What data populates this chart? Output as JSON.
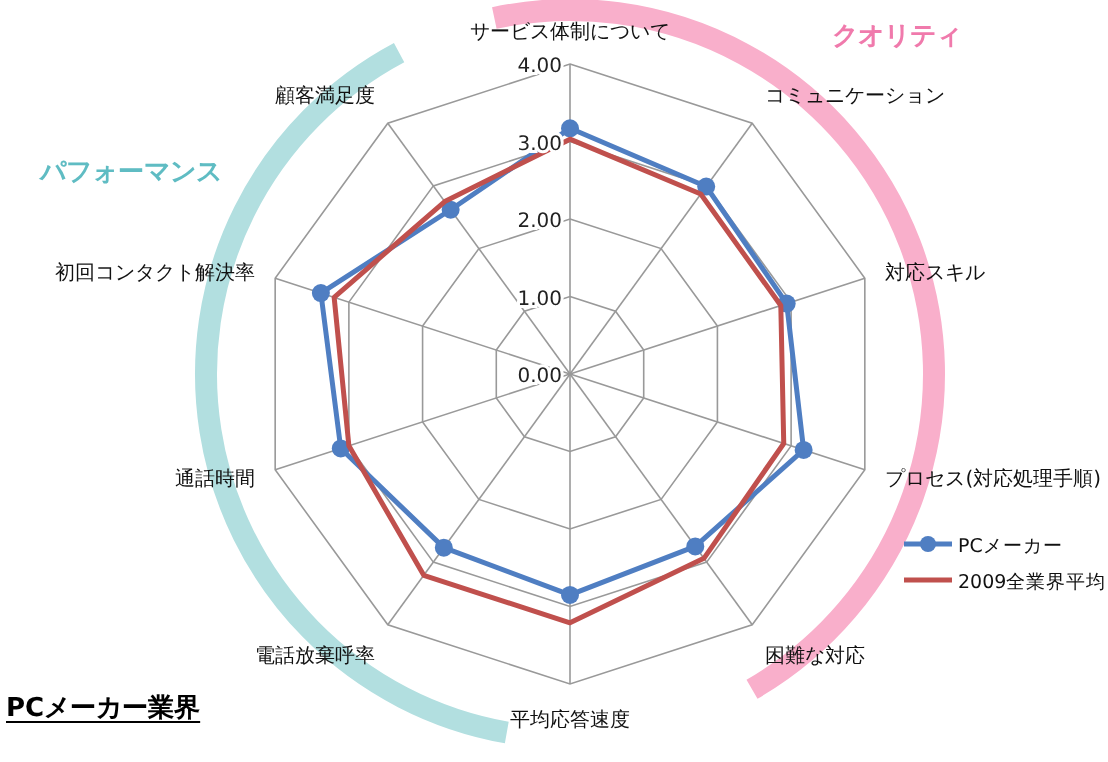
{
  "chart_data": {
    "type": "radar",
    "title": "PCメーカー業界",
    "categories": [
      "サービス体制について",
      "コミュニケーション",
      "対応スキル",
      "プロセス(対応処理手順)",
      "困難な対応",
      "平均応答速度",
      "電話放棄呼率",
      "通話時間",
      "初回コンタクト解決率",
      "顧客満足度"
    ],
    "series": [
      {
        "name": "PCメーカー",
        "color": "#4f7ec2",
        "marker": "circle",
        "values": [
          3.17,
          2.99,
          2.94,
          3.17,
          2.75,
          2.85,
          2.77,
          3.11,
          3.38,
          2.62
        ]
      },
      {
        "name": "2009全業界平均",
        "color": "#c0504d",
        "marker": "none",
        "values": [
          3.03,
          2.87,
          2.86,
          2.9,
          2.94,
          3.21,
          3.21,
          3.0,
          3.2,
          2.75
        ]
      }
    ],
    "ylim": [
      0,
      4
    ],
    "yticks": [
      {
        "value": 0,
        "label": "0.00"
      },
      {
        "value": 1,
        "label": "1.00"
      },
      {
        "value": 2,
        "label": "2.00"
      },
      {
        "value": 3,
        "label": "3.00"
      },
      {
        "value": 4,
        "label": "4.00"
      }
    ],
    "grid": true,
    "legend": "right",
    "annotations": [
      "クオリティ",
      "パフォーマンス"
    ]
  }
}
